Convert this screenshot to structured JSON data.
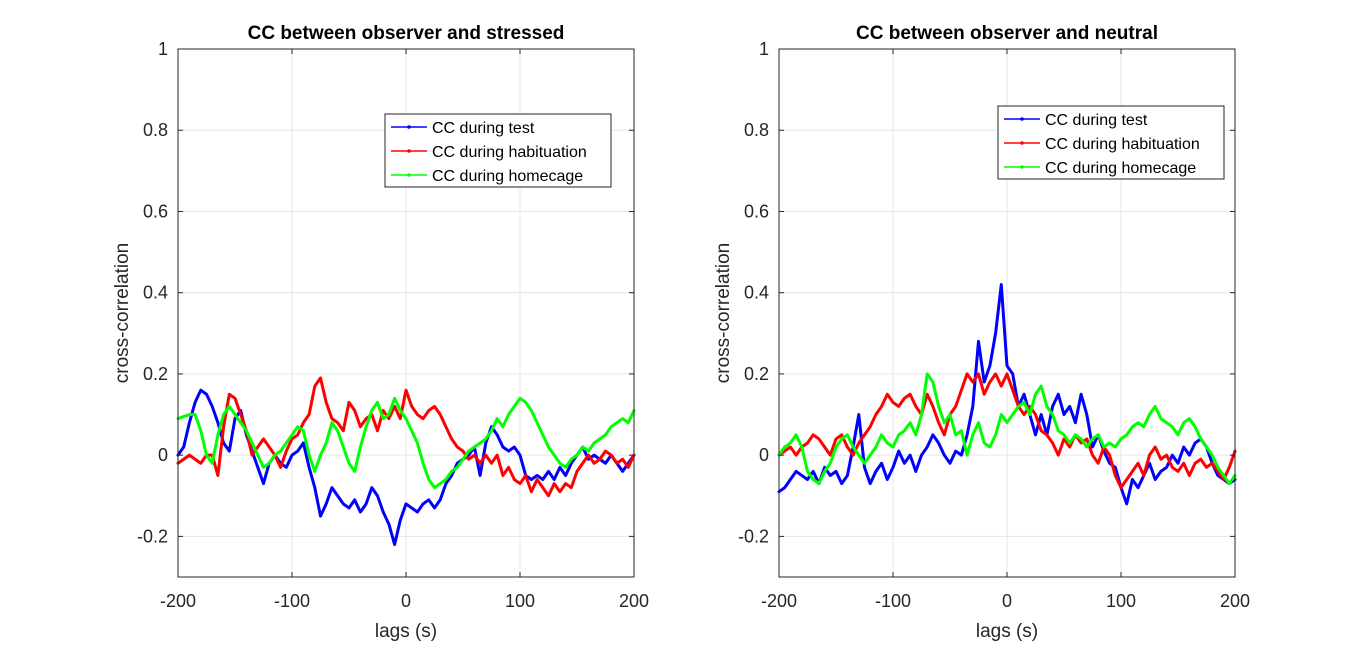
{
  "chart_data": [
    {
      "type": "line",
      "title": "CC between observer and stressed",
      "xlabel": "lags (s)",
      "ylabel": "cross-correlation",
      "xlim": [
        -200,
        200
      ],
      "ylim": [
        -0.3,
        1
      ],
      "xticks": [
        -200,
        -100,
        0,
        100,
        200
      ],
      "yticks": [
        -0.2,
        0,
        0.2,
        0.4,
        0.6,
        0.8,
        1
      ],
      "xtick_labels": [
        "-200",
        "-100",
        "0",
        "100",
        "200"
      ],
      "ytick_labels": [
        "-0.2",
        "0",
        "0.2",
        "0.4",
        "0.6",
        "0.8",
        "1"
      ],
      "grid": true,
      "legend_position": "top-right",
      "series": [
        {
          "name": "CC during test",
          "color": "#0000ff",
          "x": [
            -200,
            -195,
            -190,
            -185,
            -180,
            -175,
            -170,
            -165,
            -160,
            -155,
            -150,
            -145,
            -140,
            -135,
            -130,
            -125,
            -120,
            -115,
            -110,
            -105,
            -100,
            -95,
            -90,
            -85,
            -80,
            -75,
            -70,
            -65,
            -60,
            -55,
            -50,
            -45,
            -40,
            -35,
            -30,
            -25,
            -20,
            -15,
            -10,
            -5,
            0,
            5,
            10,
            15,
            20,
            25,
            30,
            35,
            40,
            45,
            50,
            55,
            60,
            65,
            70,
            75,
            80,
            85,
            90,
            95,
            100,
            105,
            110,
            115,
            120,
            125,
            130,
            135,
            140,
            145,
            150,
            155,
            160,
            165,
            170,
            175,
            180,
            185,
            190,
            195,
            200
          ],
          "y": [
            0.0,
            0.02,
            0.08,
            0.13,
            0.16,
            0.15,
            0.12,
            0.08,
            0.03,
            0.01,
            0.09,
            0.11,
            0.05,
            0.01,
            -0.03,
            -0.07,
            -0.02,
            0.0,
            -0.02,
            -0.03,
            0.0,
            0.01,
            0.03,
            -0.03,
            -0.08,
            -0.15,
            -0.12,
            -0.08,
            -0.1,
            -0.12,
            -0.13,
            -0.11,
            -0.14,
            -0.12,
            -0.08,
            -0.1,
            -0.14,
            -0.17,
            -0.22,
            -0.16,
            -0.12,
            -0.13,
            -0.14,
            -0.12,
            -0.11,
            -0.13,
            -0.11,
            -0.07,
            -0.05,
            -0.02,
            -0.01,
            0.0,
            0.02,
            -0.05,
            0.03,
            0.07,
            0.05,
            0.02,
            0.01,
            0.02,
            0.0,
            -0.05,
            -0.06,
            -0.05,
            -0.06,
            -0.04,
            -0.06,
            -0.03,
            -0.05,
            -0.02,
            0.0,
            0.02,
            -0.01,
            0.0,
            -0.01,
            -0.02,
            0.0,
            -0.02,
            -0.04,
            -0.02,
            0.0
          ]
        },
        {
          "name": "CC during habituation",
          "color": "#ff0000",
          "x": [
            -200,
            -195,
            -190,
            -185,
            -180,
            -175,
            -170,
            -165,
            -160,
            -155,
            -150,
            -145,
            -140,
            -135,
            -130,
            -125,
            -120,
            -115,
            -110,
            -105,
            -100,
            -95,
            -90,
            -85,
            -80,
            -75,
            -70,
            -65,
            -60,
            -55,
            -50,
            -45,
            -40,
            -35,
            -30,
            -25,
            -20,
            -15,
            -10,
            -5,
            0,
            5,
            10,
            15,
            20,
            25,
            30,
            35,
            40,
            45,
            50,
            55,
            60,
            65,
            70,
            75,
            80,
            85,
            90,
            95,
            100,
            105,
            110,
            115,
            120,
            125,
            130,
            135,
            140,
            145,
            150,
            155,
            160,
            165,
            170,
            175,
            180,
            185,
            190,
            195,
            200
          ],
          "y": [
            -0.02,
            -0.01,
            0.0,
            -0.01,
            -0.02,
            0.0,
            0.0,
            -0.05,
            0.07,
            0.15,
            0.14,
            0.1,
            0.06,
            0.0,
            0.02,
            0.04,
            0.02,
            0.0,
            -0.03,
            0.01,
            0.04,
            0.05,
            0.08,
            0.1,
            0.17,
            0.19,
            0.13,
            0.09,
            0.08,
            0.06,
            0.13,
            0.11,
            0.07,
            0.09,
            0.1,
            0.06,
            0.11,
            0.09,
            0.12,
            0.09,
            0.16,
            0.12,
            0.1,
            0.09,
            0.11,
            0.12,
            0.1,
            0.07,
            0.04,
            0.02,
            0.01,
            -0.01,
            0.0,
            -0.02,
            0.0,
            -0.02,
            0.0,
            -0.05,
            -0.03,
            -0.06,
            -0.07,
            -0.05,
            -0.09,
            -0.06,
            -0.08,
            -0.1,
            -0.07,
            -0.09,
            -0.07,
            -0.08,
            -0.04,
            -0.02,
            0.0,
            -0.02,
            -0.01,
            0.01,
            0.0,
            -0.02,
            -0.01,
            -0.03,
            0.0
          ]
        },
        {
          "name": "CC during homecage",
          "color": "#00ff00",
          "x": [
            -200,
            -195,
            -190,
            -185,
            -180,
            -175,
            -170,
            -165,
            -160,
            -155,
            -150,
            -145,
            -140,
            -135,
            -130,
            -125,
            -120,
            -115,
            -110,
            -105,
            -100,
            -95,
            -90,
            -85,
            -80,
            -75,
            -70,
            -65,
            -60,
            -55,
            -50,
            -45,
            -40,
            -35,
            -30,
            -25,
            -20,
            -15,
            -10,
            -5,
            0,
            5,
            10,
            15,
            20,
            25,
            30,
            35,
            40,
            45,
            50,
            55,
            60,
            65,
            70,
            75,
            80,
            85,
            90,
            95,
            100,
            105,
            110,
            115,
            120,
            125,
            130,
            135,
            140,
            145,
            150,
            155,
            160,
            165,
            170,
            175,
            180,
            185,
            190,
            195,
            200
          ],
          "y": [
            0.09,
            0.095,
            0.1,
            0.1,
            0.06,
            0.0,
            -0.02,
            0.05,
            0.1,
            0.12,
            0.1,
            0.08,
            0.06,
            0.03,
            0.0,
            -0.03,
            -0.02,
            0.0,
            0.01,
            0.03,
            0.05,
            0.07,
            0.06,
            0.0,
            -0.04,
            0.0,
            0.03,
            0.08,
            0.06,
            0.02,
            -0.02,
            -0.04,
            0.02,
            0.07,
            0.11,
            0.13,
            0.09,
            0.1,
            0.14,
            0.11,
            0.09,
            0.06,
            0.03,
            -0.02,
            -0.06,
            -0.08,
            -0.07,
            -0.06,
            -0.04,
            -0.03,
            -0.01,
            0.01,
            0.02,
            0.03,
            0.04,
            0.06,
            0.09,
            0.07,
            0.1,
            0.12,
            0.14,
            0.13,
            0.11,
            0.08,
            0.05,
            0.02,
            0.0,
            -0.02,
            -0.03,
            -0.01,
            0.0,
            0.02,
            0.01,
            0.03,
            0.04,
            0.05,
            0.07,
            0.08,
            0.09,
            0.08,
            0.11
          ]
        }
      ]
    },
    {
      "type": "line",
      "title": "CC between observer and neutral",
      "xlabel": "lags (s)",
      "ylabel": "cross-correlation",
      "xlim": [
        -200,
        200
      ],
      "ylim": [
        -0.3,
        1
      ],
      "xticks": [
        -200,
        -100,
        0,
        100,
        200
      ],
      "yticks": [
        -0.2,
        0,
        0.2,
        0.4,
        0.6,
        0.8,
        1
      ],
      "xtick_labels": [
        "-200",
        "-100",
        "0",
        "100",
        "200"
      ],
      "ytick_labels": [
        "-0.2",
        "0",
        "0.2",
        "0.4",
        "0.6",
        "0.8",
        "1"
      ],
      "grid": true,
      "legend_position": "top-right",
      "series": [
        {
          "name": "CC during test",
          "color": "#0000ff",
          "x": [
            -200,
            -195,
            -190,
            -185,
            -180,
            -175,
            -170,
            -165,
            -160,
            -155,
            -150,
            -145,
            -140,
            -135,
            -130,
            -125,
            -120,
            -115,
            -110,
            -105,
            -100,
            -95,
            -90,
            -85,
            -80,
            -75,
            -70,
            -65,
            -60,
            -55,
            -50,
            -45,
            -40,
            -35,
            -30,
            -25,
            -20,
            -15,
            -10,
            -5,
            0,
            5,
            10,
            15,
            20,
            25,
            30,
            35,
            40,
            45,
            50,
            55,
            60,
            65,
            70,
            75,
            80,
            85,
            90,
            95,
            100,
            105,
            110,
            115,
            120,
            125,
            130,
            135,
            140,
            145,
            150,
            155,
            160,
            165,
            170,
            175,
            180,
            185,
            190,
            195,
            200
          ],
          "y": [
            -0.09,
            -0.08,
            -0.06,
            -0.04,
            -0.05,
            -0.06,
            -0.04,
            -0.07,
            -0.03,
            -0.05,
            -0.04,
            -0.07,
            -0.05,
            0.02,
            0.1,
            -0.03,
            -0.07,
            -0.04,
            -0.02,
            -0.06,
            -0.03,
            0.01,
            -0.02,
            0.0,
            -0.04,
            0.0,
            0.02,
            0.05,
            0.03,
            0.0,
            -0.02,
            0.01,
            0.0,
            0.05,
            0.12,
            0.28,
            0.18,
            0.22,
            0.3,
            0.42,
            0.22,
            0.2,
            0.12,
            0.15,
            0.1,
            0.05,
            0.1,
            0.05,
            0.12,
            0.15,
            0.1,
            0.12,
            0.08,
            0.15,
            0.1,
            0.02,
            0.05,
            0.01,
            -0.02,
            -0.03,
            -0.08,
            -0.12,
            -0.06,
            -0.08,
            -0.05,
            -0.02,
            -0.06,
            -0.04,
            -0.03,
            0.0,
            -0.02,
            0.02,
            0.0,
            0.03,
            0.04,
            0.02,
            -0.02,
            -0.05,
            -0.06,
            -0.07,
            -0.06
          ]
        },
        {
          "name": "CC during habituation",
          "color": "#ff0000",
          "x": [
            -200,
            -195,
            -190,
            -185,
            -180,
            -175,
            -170,
            -165,
            -160,
            -155,
            -150,
            -145,
            -140,
            -135,
            -130,
            -125,
            -120,
            -115,
            -110,
            -105,
            -100,
            -95,
            -90,
            -85,
            -80,
            -75,
            -70,
            -65,
            -60,
            -55,
            -50,
            -45,
            -40,
            -35,
            -30,
            -25,
            -20,
            -15,
            -10,
            -5,
            0,
            5,
            10,
            15,
            20,
            25,
            30,
            35,
            40,
            45,
            50,
            55,
            60,
            65,
            70,
            75,
            80,
            85,
            90,
            95,
            100,
            105,
            110,
            115,
            120,
            125,
            130,
            135,
            140,
            145,
            150,
            155,
            160,
            165,
            170,
            175,
            180,
            185,
            190,
            195,
            200
          ],
          "y": [
            0.0,
            0.01,
            0.02,
            0.0,
            0.02,
            0.03,
            0.05,
            0.04,
            0.02,
            0.0,
            0.04,
            0.05,
            0.02,
            0.0,
            0.03,
            0.05,
            0.07,
            0.1,
            0.12,
            0.15,
            0.13,
            0.12,
            0.14,
            0.15,
            0.12,
            0.1,
            0.15,
            0.12,
            0.08,
            0.05,
            0.1,
            0.12,
            0.16,
            0.2,
            0.18,
            0.2,
            0.15,
            0.18,
            0.2,
            0.17,
            0.2,
            0.16,
            0.12,
            0.1,
            0.12,
            0.1,
            0.06,
            0.05,
            0.03,
            0.0,
            0.04,
            0.02,
            0.05,
            0.03,
            0.04,
            0.0,
            -0.02,
            0.02,
            0.0,
            -0.05,
            -0.08,
            -0.06,
            -0.04,
            -0.02,
            -0.05,
            0.0,
            0.02,
            -0.01,
            0.0,
            -0.03,
            -0.04,
            -0.02,
            -0.05,
            -0.02,
            -0.01,
            -0.03,
            -0.02,
            -0.04,
            -0.06,
            -0.03,
            0.01
          ]
        },
        {
          "name": "CC during homecage",
          "color": "#00ff00",
          "x": [
            -200,
            -195,
            -190,
            -185,
            -180,
            -175,
            -170,
            -165,
            -160,
            -155,
            -150,
            -145,
            -140,
            -135,
            -130,
            -125,
            -120,
            -115,
            -110,
            -105,
            -100,
            -95,
            -90,
            -85,
            -80,
            -75,
            -70,
            -65,
            -60,
            -55,
            -50,
            -45,
            -40,
            -35,
            -30,
            -25,
            -20,
            -15,
            -10,
            -5,
            0,
            5,
            10,
            15,
            20,
            25,
            30,
            35,
            40,
            45,
            50,
            55,
            60,
            65,
            70,
            75,
            80,
            85,
            90,
            95,
            100,
            105,
            110,
            115,
            120,
            125,
            130,
            135,
            140,
            145,
            150,
            155,
            160,
            165,
            170,
            175,
            180,
            185,
            190,
            195,
            200
          ],
          "y": [
            0.0,
            0.02,
            0.03,
            0.05,
            0.02,
            -0.04,
            -0.06,
            -0.07,
            -0.04,
            -0.02,
            0.02,
            0.04,
            0.05,
            0.02,
            0.0,
            -0.02,
            0.0,
            0.02,
            0.05,
            0.03,
            0.02,
            0.05,
            0.06,
            0.08,
            0.05,
            0.1,
            0.2,
            0.18,
            0.12,
            0.08,
            0.1,
            0.05,
            0.06,
            0.0,
            0.05,
            0.08,
            0.03,
            0.02,
            0.05,
            0.1,
            0.08,
            0.1,
            0.12,
            0.13,
            0.1,
            0.15,
            0.17,
            0.12,
            0.1,
            0.06,
            0.05,
            0.03,
            0.05,
            0.04,
            0.02,
            0.04,
            0.05,
            0.02,
            0.03,
            0.02,
            0.04,
            0.05,
            0.07,
            0.08,
            0.07,
            0.1,
            0.12,
            0.09,
            0.08,
            0.07,
            0.05,
            0.08,
            0.09,
            0.07,
            0.04,
            0.02,
            0.0,
            -0.03,
            -0.05,
            -0.07,
            -0.05
          ]
        }
      ]
    }
  ]
}
